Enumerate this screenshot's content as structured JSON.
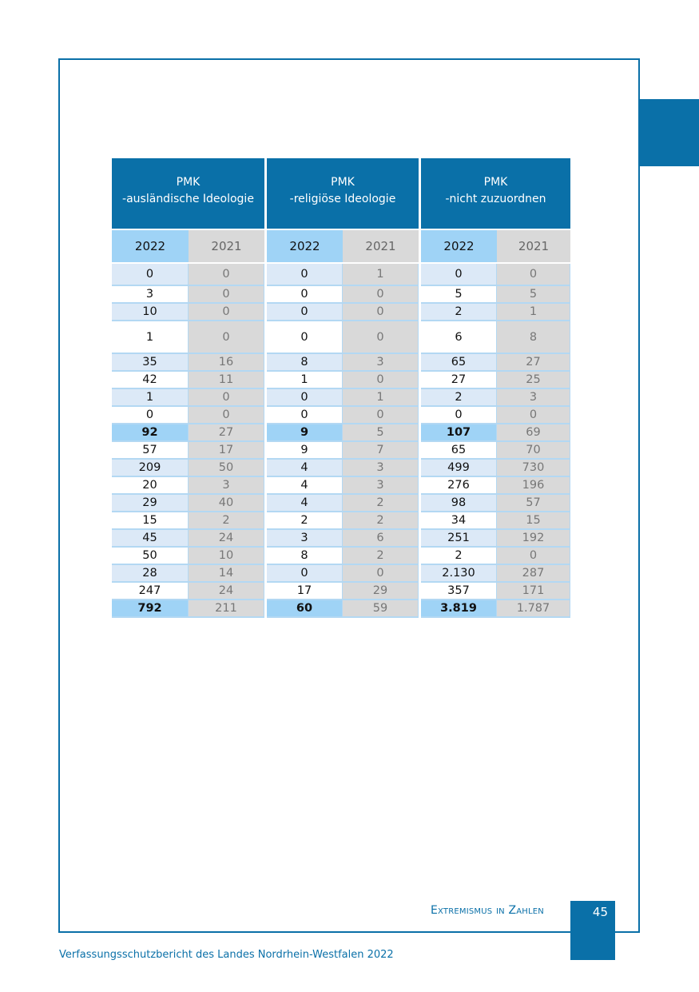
{
  "table": {
    "groups": [
      {
        "line1": "PMK",
        "line2": "-ausländische Ideologie"
      },
      {
        "line1": "PMK",
        "line2": "-religiöse Ideologie"
      },
      {
        "line1": "PMK",
        "line2": "-nicht zuzuordnen"
      }
    ],
    "year_current": "2022",
    "year_previous": "2021",
    "rows": [
      [
        "0",
        "0",
        "0",
        "1",
        "0",
        "0"
      ],
      [
        "3",
        "0",
        "0",
        "0",
        "5",
        "5"
      ],
      [
        "10",
        "0",
        "0",
        "0",
        "2",
        "1"
      ],
      [
        "1",
        "0",
        "0",
        "0",
        "6",
        "8"
      ],
      [
        "35",
        "16",
        "8",
        "3",
        "65",
        "27"
      ],
      [
        "42",
        "11",
        "1",
        "0",
        "27",
        "25"
      ],
      [
        "1",
        "0",
        "0",
        "1",
        "2",
        "3"
      ],
      [
        "0",
        "0",
        "0",
        "0",
        "0",
        "0"
      ],
      [
        "92",
        "27",
        "9",
        "5",
        "107",
        "69"
      ],
      [
        "57",
        "17",
        "9",
        "7",
        "65",
        "70"
      ],
      [
        "209",
        "50",
        "4",
        "3",
        "499",
        "730"
      ],
      [
        "20",
        "3",
        "4",
        "3",
        "276",
        "196"
      ],
      [
        "29",
        "40",
        "4",
        "2",
        "98",
        "57"
      ],
      [
        "15",
        "2",
        "2",
        "2",
        "34",
        "15"
      ],
      [
        "45",
        "24",
        "3",
        "6",
        "251",
        "192"
      ],
      [
        "50",
        "10",
        "8",
        "2",
        "2",
        "0"
      ],
      [
        "28",
        "14",
        "0",
        "0",
        "2.130",
        "287"
      ],
      [
        "247",
        "24",
        "17",
        "29",
        "357",
        "171"
      ],
      [
        "792",
        "211",
        "60",
        "59",
        "3.819",
        "1.787"
      ]
    ],
    "highlight_rows": [
      8,
      18
    ]
  },
  "footer": {
    "section_title": "Extremismus in Zahlen",
    "page_number": "45",
    "publication": "Verfassungsschutzbericht des Landes Nordrhein-Westfalen 2022"
  },
  "colors": {
    "brand": "#0a70a8",
    "highlight": "#9fd3f6",
    "row_light": "#dce9f7",
    "prev_year": "#d9d9d9"
  }
}
